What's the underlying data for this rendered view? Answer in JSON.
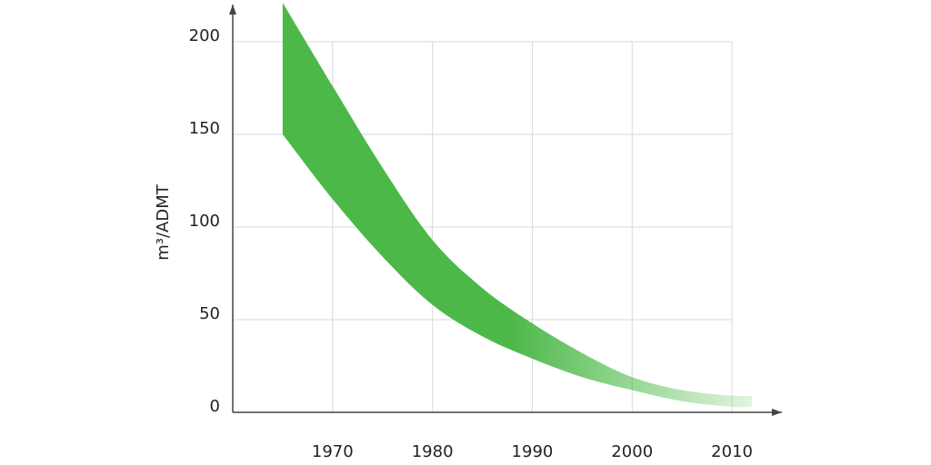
{
  "chart_data": {
    "type": "range-area",
    "y_label": "m³/ADMT",
    "x": [
      1965,
      1970,
      1975,
      1980,
      1985,
      1990,
      1995,
      2000,
      2005,
      2010,
      2012
    ],
    "upper": [
      221,
      176,
      132,
      93,
      67,
      48,
      32,
      19,
      12,
      9,
      9
    ],
    "lower": [
      150,
      115,
      84,
      58,
      41,
      29,
      19,
      12,
      6,
      3,
      3
    ],
    "color": "#4cb848",
    "xlim": [
      1960,
      2015
    ],
    "ylim": [
      0,
      220
    ],
    "xticks": [
      1970,
      1980,
      1990,
      2000,
      2010
    ],
    "yticks": [
      0,
      50,
      100,
      150,
      200
    ],
    "grid": true
  }
}
